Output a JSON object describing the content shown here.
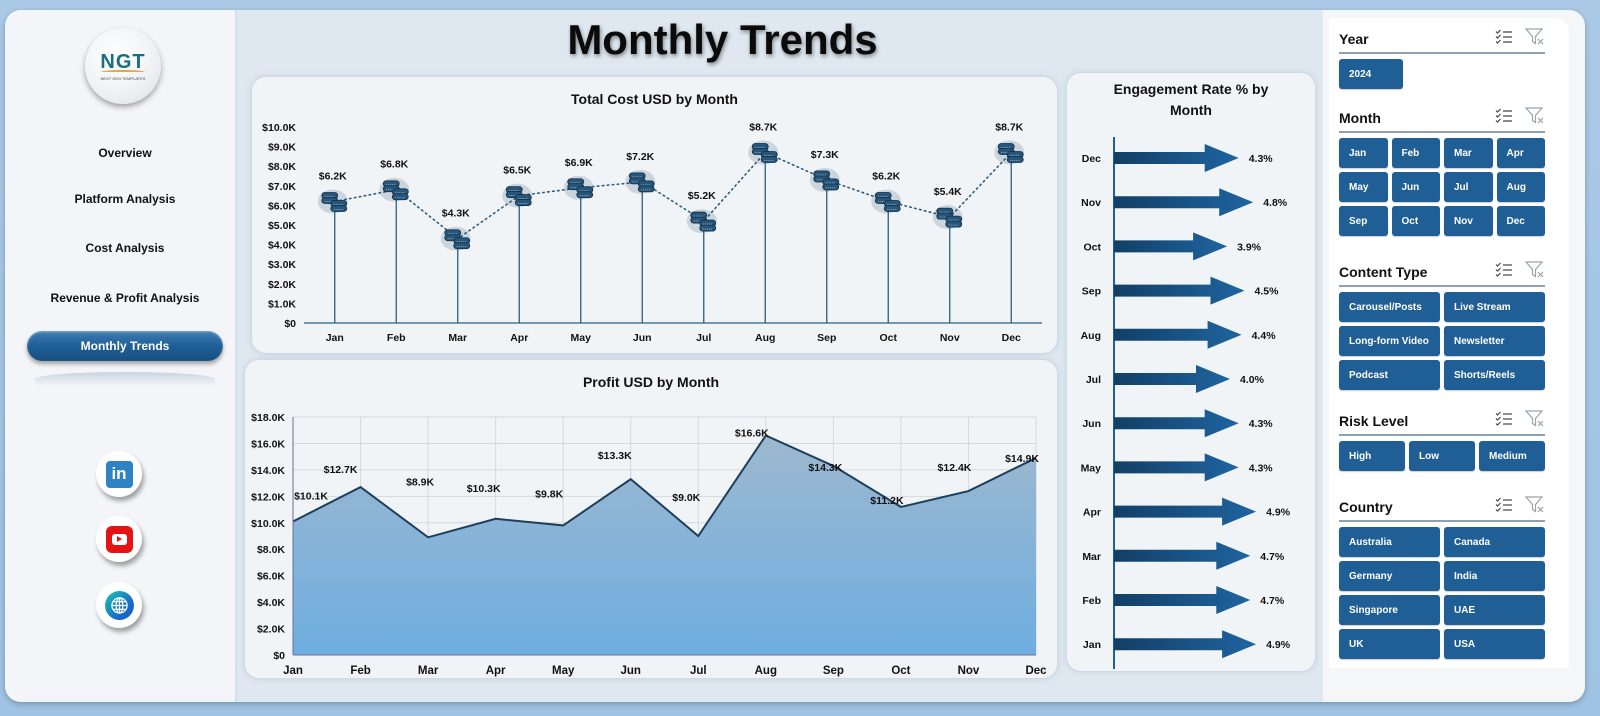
{
  "title": "Monthly Trends",
  "logo": {
    "text": "NGT",
    "subtext": "NEXT GEN TEMPLATES"
  },
  "sidebar": {
    "items": [
      {
        "label": "Overview",
        "active": false
      },
      {
        "label": "Platform Analysis",
        "active": false
      },
      {
        "label": "Cost Analysis",
        "active": false
      },
      {
        "label": "Revenue & Profit Analysis",
        "active": false
      },
      {
        "label": "Monthly Trends",
        "active": true
      }
    ],
    "social": [
      {
        "icon": "linkedin-icon",
        "label": "in"
      },
      {
        "icon": "youtube-icon"
      },
      {
        "icon": "globe-icon"
      }
    ]
  },
  "colors": {
    "accent": "#1f5f96",
    "stem": "#2c5d80",
    "area_top": "#9db8cf",
    "area_bottom": "#6eaee0",
    "line": "#1e3f5c"
  },
  "filters": {
    "year": {
      "label": "Year",
      "options": [
        "2024"
      ]
    },
    "month": {
      "label": "Month",
      "options": [
        "Jan",
        "Feb",
        "Mar",
        "Apr",
        "May",
        "Jun",
        "Jul",
        "Aug",
        "Sep",
        "Oct",
        "Nov",
        "Dec"
      ]
    },
    "content_type": {
      "label": "Content Type",
      "options": [
        "Carousel/Posts",
        "Live Stream",
        "Long-form Video",
        "Newsletter",
        "Podcast",
        "Shorts/Reels"
      ]
    },
    "risk_level": {
      "label": "Risk Level",
      "options": [
        "High",
        "Low",
        "Medium"
      ]
    },
    "country": {
      "label": "Country",
      "options": [
        "Australia",
        "Canada",
        "Germany",
        "India",
        "Singapore",
        "UAE",
        "UK",
        "USA"
      ]
    }
  },
  "chart_data": [
    {
      "type": "line",
      "title": "Total Cost USD by Month",
      "categories": [
        "Jan",
        "Feb",
        "Mar",
        "Apr",
        "May",
        "Jun",
        "Jul",
        "Aug",
        "Sep",
        "Oct",
        "Nov",
        "Dec"
      ],
      "values": [
        6200,
        6800,
        4300,
        6500,
        6900,
        7200,
        5200,
        8700,
        7300,
        6200,
        5400,
        8700
      ],
      "labels": [
        "$6.2K",
        "$6.8K",
        "$4.3K",
        "$6.5K",
        "$6.9K",
        "$7.2K",
        "$5.2K",
        "$8.7K",
        "$7.3K",
        "$6.2K",
        "$5.4K",
        "$8.7K"
      ],
      "yticks": [
        "$0",
        "$1.0K",
        "$2.0K",
        "$3.0K",
        "$4.0K",
        "$5.0K",
        "$6.0K",
        "$7.0K",
        "$8.0K",
        "$9.0K",
        "$10.0K"
      ],
      "ylim": [
        0,
        10000
      ],
      "xlabel": "",
      "ylabel": "",
      "marker": "coin-stack-icon",
      "style": "dotted line with drop stems"
    },
    {
      "type": "area",
      "title": "Profit USD by Month",
      "categories": [
        "Jan",
        "Feb",
        "Mar",
        "Apr",
        "May",
        "Jun",
        "Jul",
        "Aug",
        "Sep",
        "Oct",
        "Nov",
        "Dec"
      ],
      "values": [
        10100,
        12700,
        8900,
        10300,
        9800,
        13300,
        9000,
        16600,
        14300,
        11200,
        12400,
        14900
      ],
      "labels": [
        "$10.1K",
        "$12.7K",
        "$8.9K",
        "$10.3K",
        "$9.8K",
        "$13.3K",
        "$9.0K",
        "$16.6K",
        "$14.3K",
        "$11.2K",
        "$12.4K",
        "$14.9K"
      ],
      "yticks": [
        "$0",
        "$2.0K",
        "$4.0K",
        "$6.0K",
        "$8.0K",
        "$10.0K",
        "$12.0K",
        "$14.0K",
        "$16.0K",
        "$18.0K"
      ],
      "ylim": [
        0,
        18000
      ],
      "grid": true,
      "xlabel": "",
      "ylabel": ""
    },
    {
      "type": "bar",
      "orientation": "horizontal",
      "title": "Engagement Rate % by Month",
      "categories": [
        "Dec",
        "Nov",
        "Oct",
        "Sep",
        "Aug",
        "Jul",
        "Jun",
        "May",
        "Apr",
        "Mar",
        "Feb",
        "Jan"
      ],
      "values": [
        4.3,
        4.8,
        3.9,
        4.5,
        4.4,
        4.0,
        4.3,
        4.3,
        4.9,
        4.7,
        4.7,
        4.9
      ],
      "labels": [
        "4.3%",
        "4.8%",
        "3.9%",
        "4.5%",
        "4.4%",
        "4.0%",
        "4.3%",
        "4.3%",
        "4.9%",
        "4.7%",
        "4.7%",
        "4.9%"
      ],
      "marker": "arrow",
      "xlabel": "",
      "ylabel": ""
    }
  ]
}
